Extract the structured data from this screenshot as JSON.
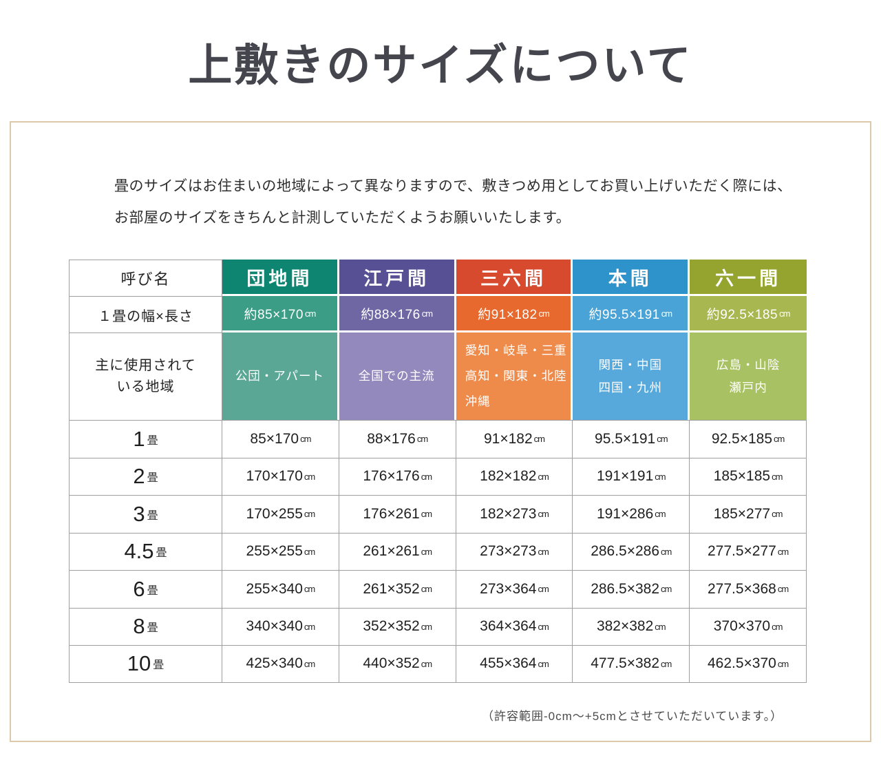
{
  "title": "上敷きのサイズについて",
  "intro": {
    "line1": "畳のサイズはお住まいの地域によって異なりますので、敷きつめ用としてお買い上げいただく際には、",
    "line2": "お部屋のサイズをきちんと計測していただくようお願いいたします。"
  },
  "table": {
    "corner_header": "呼び名",
    "width_length_label": "１畳の幅×長さ",
    "region_label_lines": [
      "主に使用されて",
      "いる地域"
    ],
    "unit": "cm",
    "tatami_unit": "畳",
    "columns": [
      {
        "name": "団地間",
        "size": "約85×170",
        "regions": [
          "公団・アパート"
        ],
        "region_align": "center",
        "header_color": "#0d8570",
        "size_color": "#3b9d85",
        "region_color": "#5ba795"
      },
      {
        "name": "江戸間",
        "size": "約88×176",
        "regions": [
          "全国での主流"
        ],
        "region_align": "center",
        "header_color": "#575094",
        "size_color": "#6f67a3",
        "region_color": "#9489bc"
      },
      {
        "name": "三六間",
        "size": "約91×182",
        "regions": [
          "愛知・岐阜・三重",
          "高知・関東・北陸",
          "沖縄"
        ],
        "region_align": "left",
        "header_color": "#d84a2e",
        "size_color": "#e7692e",
        "region_color": "#ee8b4b"
      },
      {
        "name": "本間",
        "size": "約95.5×191",
        "regions": [
          "関西・中国",
          "四国・九州"
        ],
        "region_align": "center",
        "header_color": "#2e93ca",
        "size_color": "#49a3d6",
        "region_color": "#58a9db"
      },
      {
        "name": "六一間",
        "size": "約92.5×185",
        "regions": [
          "広島・山陰",
          "瀬戸内"
        ],
        "region_align": "center",
        "header_color": "#95a42f",
        "size_color": "#a9b751",
        "region_color": "#a8c162"
      }
    ],
    "size_rows": [
      {
        "label": "1",
        "values": [
          "85×170",
          "88×176",
          "91×182",
          "95.5×191",
          "92.5×185"
        ]
      },
      {
        "label": "2",
        "values": [
          "170×170",
          "176×176",
          "182×182",
          "191×191",
          "185×185"
        ]
      },
      {
        "label": "3",
        "values": [
          "170×255",
          "176×261",
          "182×273",
          "191×286",
          "185×277"
        ]
      },
      {
        "label": "4.5",
        "values": [
          "255×255",
          "261×261",
          "273×273",
          "286.5×286",
          "277.5×277"
        ]
      },
      {
        "label": "6",
        "values": [
          "255×340",
          "261×352",
          "273×364",
          "286.5×382",
          "277.5×368"
        ]
      },
      {
        "label": "8",
        "values": [
          "340×340",
          "352×352",
          "364×364",
          "382×382",
          "370×370"
        ]
      },
      {
        "label": "10",
        "values": [
          "425×340",
          "440×352",
          "455×364",
          "477.5×382",
          "462.5×370"
        ]
      }
    ]
  },
  "note": "（許容範囲-0cm～+5cmとさせていただいています。）",
  "colors": {
    "frame_border": "#dcc9aa",
    "table_border": "#9e9e9e",
    "title_color": "#45454d"
  }
}
